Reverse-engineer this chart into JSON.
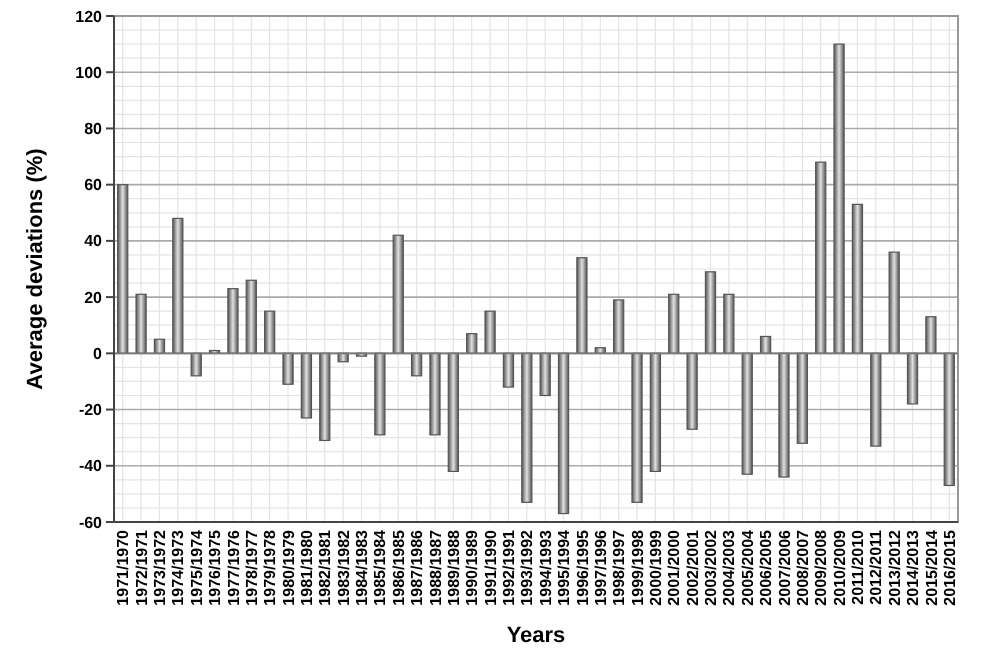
{
  "chart_data": {
    "type": "bar",
    "xlabel": "Years",
    "ylabel": "Average deviations (%)",
    "categories": [
      "1971/1970",
      "1972/1971",
      "1973/1972",
      "1974/1973",
      "1975/1974",
      "1976/1975",
      "1977/1976",
      "1978/1977",
      "1979/1978",
      "1980/1979",
      "1981/1980",
      "1982/1981",
      "1983/1982",
      "1984/1983",
      "1985/1984",
      "1986/1985",
      "1987/1986",
      "1988/1987",
      "1989/1988",
      "1990/1989",
      "1991/1990",
      "1992/1991",
      "1993/1992",
      "1994/1993",
      "1995/1994",
      "1996/1995",
      "1997/1996",
      "1998/1997",
      "1999/1998",
      "2000/1999",
      "2001/2000",
      "2002/2001",
      "2003/2002",
      "2004/2003",
      "2005/2004",
      "2006/2005",
      "2007/2006",
      "2008/2007",
      "2009/2008",
      "2010/2009",
      "2011/2010",
      "2012/2011",
      "2013/2012",
      "2014/2013",
      "2015/2014",
      "2016/2015"
    ],
    "values": [
      60,
      21,
      5,
      48,
      -8,
      1,
      23,
      26,
      15,
      -11,
      -23,
      -31,
      -3,
      -1,
      -29,
      42,
      -8,
      -29,
      -42,
      7,
      15,
      -12,
      -53,
      -15,
      -57,
      34,
      2,
      19,
      -53,
      -42,
      21,
      -27,
      29,
      21,
      -43,
      6,
      -44,
      -32,
      68,
      110,
      53,
      -33,
      36,
      -18,
      13,
      -47
    ],
    "color": "#555555",
    "ylim": [
      -60,
      120
    ],
    "yticks": [
      -60,
      -40,
      -20,
      0,
      20,
      40,
      60,
      80,
      100,
      120
    ],
    "grid": true
  }
}
